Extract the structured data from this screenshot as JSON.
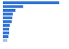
{
  "chart_data": {
    "type": "bar",
    "orientation": "horizontal",
    "categories": [
      null,
      null,
      null,
      null,
      null,
      null,
      null,
      null,
      null,
      null,
      null
    ],
    "values": [
      89,
      32,
      20,
      16,
      15,
      14,
      11,
      10,
      10,
      9,
      7
    ],
    "colors": [
      "#2f72d4",
      "#2f72d4",
      "#2f72d4",
      "#2f72d4",
      "#2f72d4",
      "#2f72d4",
      "#2f72d4",
      "#2f72d4",
      "#2f72d4",
      "#2f72d4",
      "#a8bedc"
    ],
    "xlim": [
      0,
      100
    ],
    "grid": false,
    "tick_labels": false
  }
}
